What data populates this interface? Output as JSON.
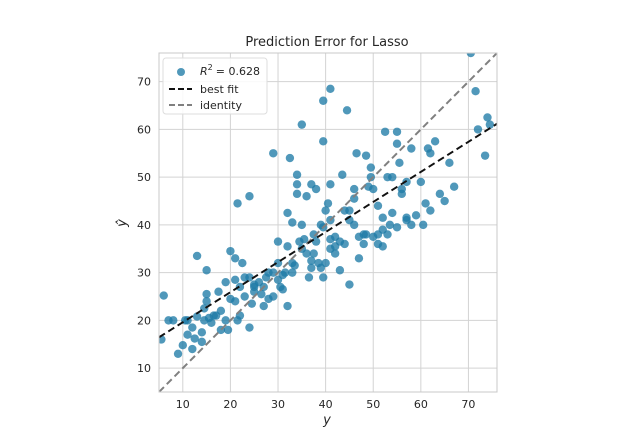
{
  "chart_data": {
    "type": "scatter",
    "title": "Prediction Error for Lasso",
    "xlabel": "y",
    "ylabel": "ŷ",
    "xlim": [
      5,
      76
    ],
    "ylim": [
      5,
      76
    ],
    "xticks": [
      10,
      20,
      30,
      40,
      50,
      60,
      70
    ],
    "yticks": [
      10,
      20,
      30,
      40,
      50,
      60,
      70
    ],
    "grid": true,
    "legend_position": "top-left",
    "legend": {
      "r2_prefix": "R",
      "r2_sup": "2",
      "r2_value": "= 0.628",
      "best_fit_label": "best fit",
      "identity_label": "identity"
    },
    "best_fit": {
      "slope": 0.63,
      "intercept": 13.3
    },
    "colors": {
      "points": "#1f7ba6",
      "best_fit": "#111111",
      "identity": "#808080",
      "grid": "#d3d3d3",
      "frame": "#c8c8c8"
    },
    "points": [
      [
        5.5,
        16
      ],
      [
        6,
        25.2
      ],
      [
        7,
        20
      ],
      [
        8,
        20
      ],
      [
        9,
        13
      ],
      [
        10,
        14.8
      ],
      [
        10.5,
        20
      ],
      [
        11,
        17
      ],
      [
        11,
        20
      ],
      [
        12,
        18.5
      ],
      [
        12,
        14
      ],
      [
        12.5,
        16.2
      ],
      [
        13,
        33.5
      ],
      [
        13,
        20.8
      ],
      [
        14,
        17.5
      ],
      [
        14,
        15.5
      ],
      [
        14.5,
        20
      ],
      [
        14.5,
        22.5
      ],
      [
        15,
        24
      ],
      [
        15,
        25.5
      ],
      [
        15,
        30.5
      ],
      [
        15.5,
        20.5
      ],
      [
        16,
        19.5
      ],
      [
        16.5,
        21
      ],
      [
        17,
        21
      ],
      [
        17.5,
        26
      ],
      [
        18,
        22
      ],
      [
        18,
        18
      ],
      [
        19,
        20
      ],
      [
        19,
        28
      ],
      [
        19.5,
        18
      ],
      [
        20,
        24.5
      ],
      [
        20,
        34.5
      ],
      [
        21,
        24
      ],
      [
        21,
        33
      ],
      [
        21,
        28.5
      ],
      [
        21.5,
        20
      ],
      [
        21.5,
        44.5
      ],
      [
        22,
        21
      ],
      [
        22,
        27
      ],
      [
        22.5,
        32
      ],
      [
        23,
        25
      ],
      [
        23,
        29
      ],
      [
        24,
        46
      ],
      [
        24,
        29
      ],
      [
        24,
        18.5
      ],
      [
        24.5,
        23.5
      ],
      [
        25,
        27
      ],
      [
        25,
        26
      ],
      [
        25,
        27.5
      ],
      [
        26,
        28
      ],
      [
        26.5,
        25.5
      ],
      [
        27,
        27
      ],
      [
        27,
        23
      ],
      [
        27.5,
        29
      ],
      [
        28,
        30
      ],
      [
        28,
        24.5
      ],
      [
        29,
        30
      ],
      [
        29,
        25
      ],
      [
        29,
        55
      ],
      [
        30,
        28.5
      ],
      [
        30,
        32
      ],
      [
        30,
        36.5
      ],
      [
        30.5,
        27
      ],
      [
        31,
        26.5
      ],
      [
        31,
        29.5
      ],
      [
        31.5,
        30
      ],
      [
        32,
        42.5
      ],
      [
        32,
        23
      ],
      [
        32,
        35.5
      ],
      [
        32.5,
        54
      ],
      [
        33,
        40.5
      ],
      [
        33,
        30
      ],
      [
        33,
        32
      ],
      [
        33.5,
        31.5
      ],
      [
        34,
        46.5
      ],
      [
        34,
        48.5
      ],
      [
        34,
        50.5
      ],
      [
        34.5,
        36.5
      ],
      [
        35,
        61
      ],
      [
        35,
        40
      ],
      [
        35,
        35
      ],
      [
        35.5,
        37
      ],
      [
        36,
        46
      ],
      [
        36,
        34
      ],
      [
        36.5,
        29
      ],
      [
        37,
        48.5
      ],
      [
        37,
        31
      ],
      [
        37,
        32.5
      ],
      [
        37.5,
        38
      ],
      [
        37.5,
        34
      ],
      [
        38,
        36.5
      ],
      [
        38,
        47.5
      ],
      [
        38.5,
        32
      ],
      [
        39,
        31
      ],
      [
        39,
        40
      ],
      [
        39.5,
        57.5
      ],
      [
        39.5,
        66
      ],
      [
        39.5,
        29
      ],
      [
        39.5,
        39.5
      ],
      [
        40,
        32
      ],
      [
        40,
        43
      ],
      [
        40.5,
        44.5
      ],
      [
        41,
        35
      ],
      [
        41,
        37
      ],
      [
        41,
        41
      ],
      [
        41,
        48.5
      ],
      [
        41,
        68.5
      ],
      [
        42,
        35.5
      ],
      [
        42,
        34
      ],
      [
        42,
        37.5
      ],
      [
        43,
        30.5
      ],
      [
        43,
        36.5
      ],
      [
        43.5,
        50.5
      ],
      [
        44,
        43
      ],
      [
        44,
        36
      ],
      [
        44.5,
        64
      ],
      [
        45,
        41
      ],
      [
        45,
        43
      ],
      [
        45,
        27.5
      ],
      [
        46,
        45.5
      ],
      [
        46,
        40
      ],
      [
        46,
        47.5
      ],
      [
        46.5,
        55
      ],
      [
        47,
        33
      ],
      [
        47,
        37.5
      ],
      [
        48,
        38
      ],
      [
        48,
        36
      ],
      [
        48.5,
        38
      ],
      [
        48.5,
        54.5
      ],
      [
        49,
        48
      ],
      [
        49.5,
        50
      ],
      [
        49.5,
        52
      ],
      [
        50,
        47.5
      ],
      [
        50,
        37.5
      ],
      [
        51,
        36
      ],
      [
        51,
        38
      ],
      [
        51,
        44
      ],
      [
        52,
        35.5
      ],
      [
        52,
        39
      ],
      [
        52,
        41.5
      ],
      [
        52.5,
        59.5
      ],
      [
        53,
        38
      ],
      [
        53,
        50
      ],
      [
        53.5,
        40
      ],
      [
        54,
        42.5
      ],
      [
        54,
        50
      ],
      [
        55,
        39.5
      ],
      [
        55,
        59.5
      ],
      [
        55,
        57
      ],
      [
        55.5,
        53
      ],
      [
        56,
        47.5
      ],
      [
        56,
        46.5
      ],
      [
        57,
        41
      ],
      [
        57,
        41.5
      ],
      [
        57,
        49
      ],
      [
        58,
        40
      ],
      [
        58,
        56
      ],
      [
        59,
        42
      ],
      [
        60,
        49
      ],
      [
        60.5,
        40
      ],
      [
        61,
        44.5
      ],
      [
        61.5,
        56
      ],
      [
        62,
        43
      ],
      [
        62,
        55
      ],
      [
        63,
        57.5
      ],
      [
        64,
        46.5
      ],
      [
        65,
        45
      ],
      [
        66,
        53
      ],
      [
        67,
        48
      ],
      [
        70.5,
        76
      ],
      [
        71.5,
        68
      ],
      [
        72,
        60
      ],
      [
        73.5,
        54.5
      ],
      [
        74,
        62.5
      ],
      [
        74.5,
        61
      ]
    ]
  }
}
